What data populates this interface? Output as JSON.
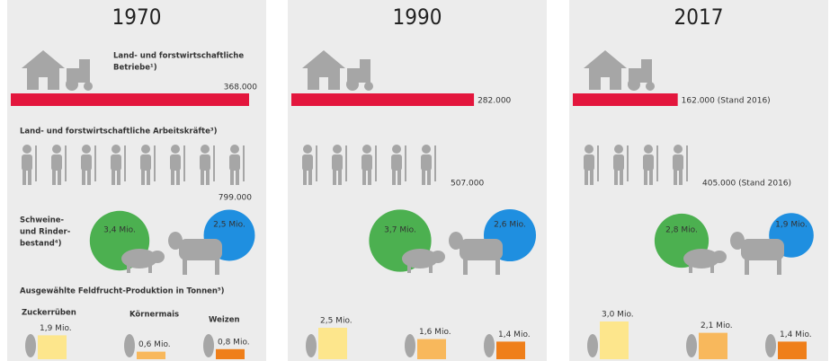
{
  "farms_title": [
    "Land- und forstwirtschaftliche",
    "Betriebe¹)"
  ],
  "workers_title": "Land- und forstwirtschaftliche Arbeitskräfte³)",
  "livestock_title": [
    "Schweine-",
    "und Rinder-",
    "bestand⁴)"
  ],
  "crops_title": "Ausgewählte Feldfrucht-Produktion in Tonnen⁵)",
  "crop_names": [
    "Zuckerrüben",
    "Körnermais",
    "Weizen"
  ],
  "panels": [
    {
      "year": "1970",
      "farms": 368000,
      "farms_label": "368.000",
      "workers": 799000,
      "workers_label": "799.000",
      "pigs": 3.4,
      "pigs_label": "3,4 Mio.",
      "cattle": 2.5,
      "cattle_label": "2,5 Mio.",
      "crops": [
        1.9,
        0.6,
        0.8
      ],
      "crop_labels": [
        "1,9 Mio.",
        "0,6 Mio.",
        "0,8 Mio."
      ]
    },
    {
      "year": "1990",
      "farms": 282000,
      "farms_label": "282.000",
      "workers": 507000,
      "workers_label": "507.000",
      "pigs": 3.7,
      "pigs_label": "3,7 Mio.",
      "cattle": 2.6,
      "cattle_label": "2,6 Mio.",
      "crops": [
        2.5,
        1.6,
        1.4
      ],
      "crop_labels": [
        "2,5 Mio.",
        "1,6 Mio.",
        "1,4 Mio."
      ]
    },
    {
      "year": "2017",
      "farms": 162000,
      "farms_label": "162.000 (Stand 2016)",
      "workers": 405000,
      "workers_label": "405.000 (Stand 2016)",
      "pigs": 2.8,
      "pigs_label": "2,8 Mio.",
      "cattle": 1.9,
      "cattle_label": "1,9 Mio.",
      "crops": [
        3.0,
        2.1,
        1.4
      ],
      "crop_labels": [
        "3,0 Mio.",
        "2,1 Mio.",
        "1,4 Mio."
      ]
    }
  ]
}
